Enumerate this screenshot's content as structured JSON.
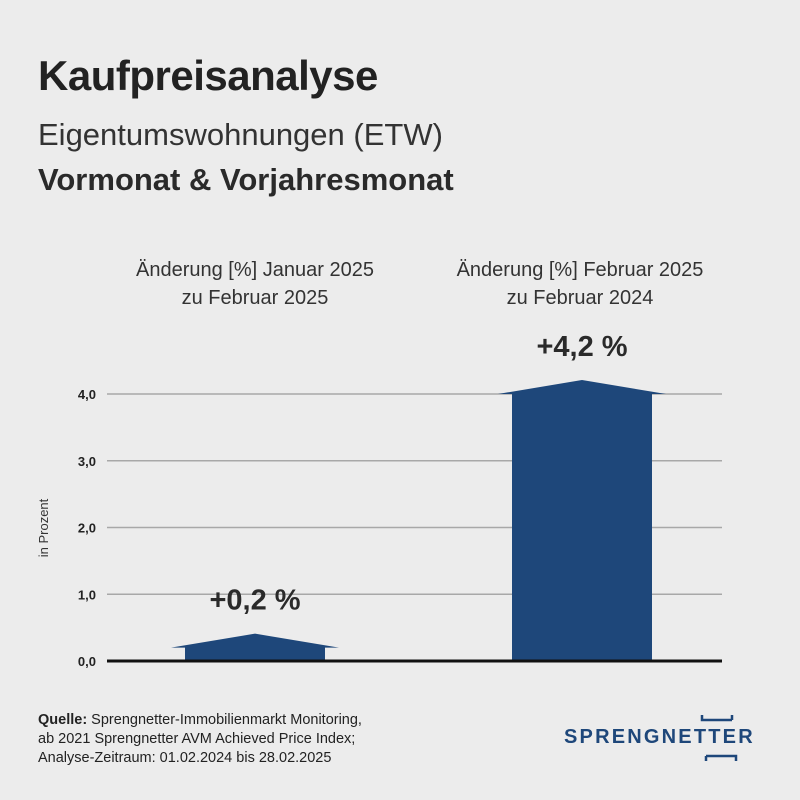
{
  "header": {
    "title": "Kaufpreisanalyse",
    "subtitle": "Eigentumswohnungen (ETW)",
    "subtitle2": "Vormonat & Vorjahresmonat"
  },
  "chart_data": {
    "type": "bar",
    "categories": [
      [
        "Änderung [%] Januar 2025",
        "zu Februar 2025"
      ],
      [
        "Änderung [%] Februar 2025",
        "zu Februar 2024"
      ]
    ],
    "values": [
      0.2,
      4.2
    ],
    "data_labels": [
      "+0,2 %",
      "+4,2 %"
    ],
    "ylabel": "in Prozent",
    "ylim": [
      0,
      4.0
    ],
    "yticks": [
      0.0,
      1.0,
      2.0,
      3.0,
      4.0
    ],
    "ytick_labels": [
      "0,0",
      "1,0",
      "2,0",
      "3,0",
      "4,0"
    ],
    "grid": true,
    "bar_color": "#1e477a",
    "grid_color": "#a8a8a8",
    "axis_color": "#111111"
  },
  "source": {
    "label": "Quelle:",
    "line1": " Sprengnetter-Immobilienmarkt Monitoring,",
    "line2": "ab 2021 Sprengnetter AVM Achieved Price Index;",
    "line3": "Analyse-Zeitraum: 01.02.2024 bis 28.02.2025"
  },
  "logo": {
    "text": "SPRENGNETTER",
    "color": "#1e477a"
  }
}
